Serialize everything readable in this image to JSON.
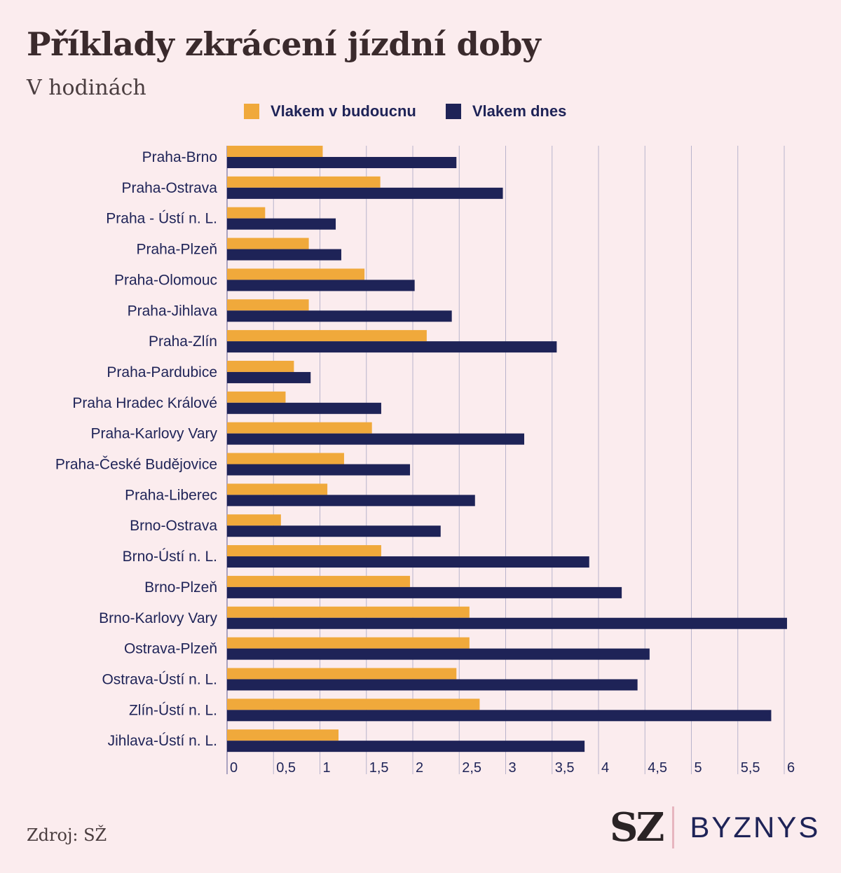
{
  "header": {
    "title": "Příklady zkrácení jízdní doby",
    "subtitle": "V hodinách"
  },
  "legend": [
    {
      "label": "Vlakem v budoucnu",
      "color": "#f0a93b"
    },
    {
      "label": "Vlakem dnes",
      "color": "#1e2357"
    }
  ],
  "footer": {
    "source": "Zdroj: SŽ",
    "brand_left": "SZ",
    "brand_right": "BYZNYS"
  },
  "chart_data": {
    "type": "bar",
    "orientation": "horizontal",
    "categories": [
      "Praha-Brno",
      "Praha-Ostrava",
      "Praha - Ústí n. L.",
      "Praha-Plzeň",
      "Praha-Olomouc",
      "Praha-Jihlava",
      "Praha-Zlín",
      "Praha-Pardubice",
      "Praha Hradec Králové",
      "Praha-Karlovy Vary",
      "Praha-České Budějovice",
      "Praha-Liberec",
      "Brno-Ostrava",
      "Brno-Ústí n. L.",
      "Brno-Plzeň",
      "Brno-Karlovy Vary",
      "Ostrava-Plzeň",
      "Ostrava-Ústí n. L.",
      "Zlín-Ústí n. L.",
      "Jihlava-Ústí n. L."
    ],
    "series": [
      {
        "name": "Vlakem v budoucnu",
        "color": "#f0a93b",
        "values": [
          1.03,
          1.65,
          0.41,
          0.88,
          1.48,
          0.88,
          2.15,
          0.72,
          0.63,
          1.56,
          1.26,
          1.08,
          0.58,
          1.66,
          1.97,
          2.61,
          2.61,
          2.47,
          2.72,
          1.2
        ]
      },
      {
        "name": "Vlakem dnes",
        "color": "#1e2357",
        "values": [
          2.47,
          2.97,
          1.17,
          1.23,
          2.02,
          2.42,
          3.55,
          0.9,
          1.66,
          3.2,
          1.97,
          2.67,
          2.3,
          3.9,
          4.25,
          6.03,
          4.55,
          4.42,
          5.86,
          3.85
        ]
      }
    ],
    "x_ticks": [
      "0",
      "0,5",
      "1",
      "1,5",
      "2",
      "2,5",
      "3",
      "3,5",
      "4",
      "4,5",
      "5",
      "5,5",
      "6"
    ],
    "xlim": [
      0,
      6.1
    ],
    "grid": true,
    "legend_position": "top"
  }
}
